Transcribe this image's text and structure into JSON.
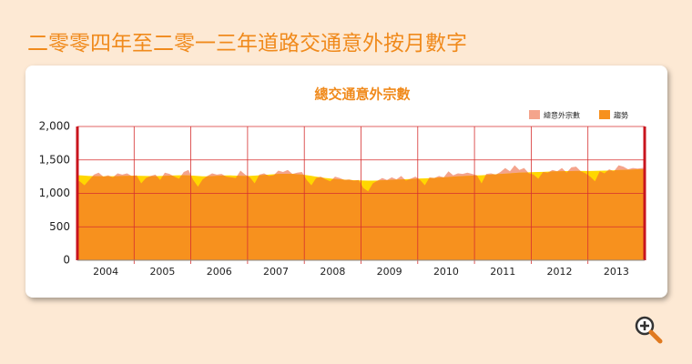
{
  "page_title": "二零零四年至二零一三年道路交通意外按月數字",
  "chart_data": {
    "type": "area",
    "title": "總交通意外宗數",
    "x_labels": [
      "2004",
      "2005",
      "2006",
      "2007",
      "2008",
      "2009",
      "2010",
      "2011",
      "2012",
      "2013"
    ],
    "ylim": [
      0,
      2000
    ],
    "yticks": [
      0,
      500,
      {
        "value": 1000,
        "label": "1,000"
      },
      {
        "value": 1500,
        "label": "1,500"
      },
      {
        "value": 2000,
        "label": "2,000"
      }
    ],
    "grid": true,
    "legend": "top-right",
    "below_trend_color": "#ffd700",
    "series": [
      {
        "name": "總意外宗數",
        "color": "#f4a48c",
        "values": [
          1180,
          1120,
          1200,
          1280,
          1310,
          1250,
          1270,
          1240,
          1300,
          1280,
          1300,
          1260,
          1270,
          1150,
          1230,
          1260,
          1280,
          1200,
          1310,
          1290,
          1250,
          1220,
          1320,
          1350,
          1200,
          1100,
          1210,
          1260,
          1300,
          1280,
          1290,
          1250,
          1240,
          1230,
          1340,
          1280,
          1240,
          1150,
          1280,
          1300,
          1260,
          1270,
          1340,
          1320,
          1350,
          1290,
          1310,
          1320,
          1200,
          1120,
          1230,
          1250,
          1210,
          1180,
          1250,
          1230,
          1200,
          1210,
          1190,
          1200,
          1080,
          1030,
          1150,
          1190,
          1230,
          1200,
          1240,
          1210,
          1260,
          1190,
          1220,
          1250,
          1200,
          1120,
          1240,
          1230,
          1260,
          1240,
          1330,
          1270,
          1300,
          1290,
          1310,
          1290,
          1270,
          1150,
          1290,
          1300,
          1280,
          1320,
          1380,
          1330,
          1420,
          1350,
          1380,
          1300,
          1280,
          1220,
          1320,
          1310,
          1350,
          1330,
          1380,
          1310,
          1390,
          1400,
          1330,
          1300,
          1250,
          1180,
          1330,
          1300,
          1360,
          1330,
          1420,
          1400,
          1360,
          1380,
          1370,
          1380
        ]
      },
      {
        "name": "趨勢",
        "color": "#f7911e",
        "values": [
          1270,
          1265,
          1260,
          1258,
          1256,
          1255,
          1255,
          1256,
          1258,
          1260,
          1262,
          1263,
          1263,
          1262,
          1260,
          1258,
          1258,
          1260,
          1262,
          1265,
          1268,
          1270,
          1270,
          1268,
          1265,
          1260,
          1255,
          1255,
          1258,
          1262,
          1265,
          1268,
          1268,
          1265,
          1262,
          1260,
          1262,
          1265,
          1270,
          1275,
          1280,
          1285,
          1290,
          1292,
          1292,
          1290,
          1285,
          1280,
          1272,
          1262,
          1250,
          1240,
          1230,
          1222,
          1215,
          1210,
          1205,
          1200,
          1198,
          1195,
          1192,
          1190,
          1190,
          1192,
          1195,
          1198,
          1202,
          1205,
          1208,
          1212,
          1215,
          1218,
          1222,
          1225,
          1228,
          1232,
          1236,
          1240,
          1245,
          1250,
          1255,
          1258,
          1262,
          1265,
          1268,
          1270,
          1275,
          1280,
          1285,
          1290,
          1295,
          1300,
          1305,
          1310,
          1312,
          1315,
          1318,
          1320,
          1322,
          1325,
          1328,
          1330,
          1332,
          1333,
          1334,
          1335,
          1335,
          1335,
          1335,
          1336,
          1338,
          1340,
          1342,
          1345,
          1348,
          1350,
          1352,
          1355,
          1358,
          1360
        ]
      }
    ]
  }
}
